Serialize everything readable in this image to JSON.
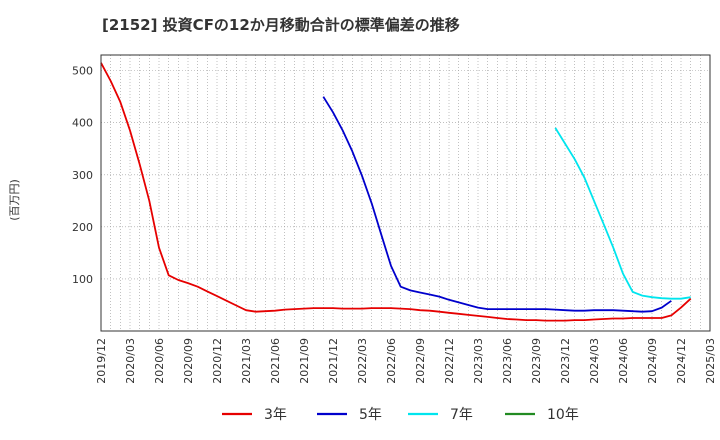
{
  "chart_data": {
    "type": "line",
    "title": "[2152]  投資CFの12か月移動合計の標準偏差の推移",
    "ylabel": "(百万円)",
    "xlabel": "",
    "ylim": [
      0,
      530
    ],
    "yticks": [
      100,
      200,
      300,
      400,
      500
    ],
    "x_start": "2019/12",
    "x_end": "2025/03",
    "xticks": [
      "2019/12",
      "2020/03",
      "2020/06",
      "2020/09",
      "2020/12",
      "2021/03",
      "2021/06",
      "2021/09",
      "2021/12",
      "2022/03",
      "2022/06",
      "2022/09",
      "2022/12",
      "2023/03",
      "2023/06",
      "2023/09",
      "2023/12",
      "2024/03",
      "2024/06",
      "2024/09",
      "2024/12",
      "2025/03"
    ],
    "grid": true,
    "legend_position": "bottom",
    "series": [
      {
        "name": "3年",
        "color": "#e60000",
        "start": "2019/12",
        "values": [
          515,
          480,
          440,
          385,
          320,
          250,
          160,
          107,
          98,
          92,
          85,
          76,
          67,
          58,
          49,
          40,
          37,
          38,
          39,
          41,
          42,
          43,
          44,
          44,
          44,
          43,
          43,
          43,
          44,
          44,
          44,
          43,
          42,
          40,
          39,
          37,
          35,
          33,
          31,
          29,
          27,
          25,
          23,
          22,
          21,
          21,
          20,
          20,
          20,
          21,
          21,
          22,
          23,
          24,
          24,
          25,
          25,
          25,
          25,
          30,
          45,
          62
        ]
      },
      {
        "name": "5年",
        "color": "#0000cc",
        "start": "2021/11",
        "values": [
          450,
          420,
          385,
          345,
          298,
          245,
          185,
          125,
          85,
          78,
          74,
          70,
          66,
          60,
          55,
          50,
          45,
          42,
          42,
          42,
          42,
          42,
          42,
          42,
          41,
          40,
          39,
          39,
          40,
          40,
          40,
          39,
          38,
          37,
          38,
          45,
          58
        ]
      },
      {
        "name": "7年",
        "color": "#00e5ee",
        "start": "2023/11",
        "values": [
          390,
          360,
          330,
          295,
          250,
          205,
          160,
          110,
          75,
          68,
          65,
          63,
          62,
          62,
          65
        ]
      },
      {
        "name": "10年",
        "color": "#228b22",
        "start": "2024/12",
        "values": []
      }
    ]
  }
}
